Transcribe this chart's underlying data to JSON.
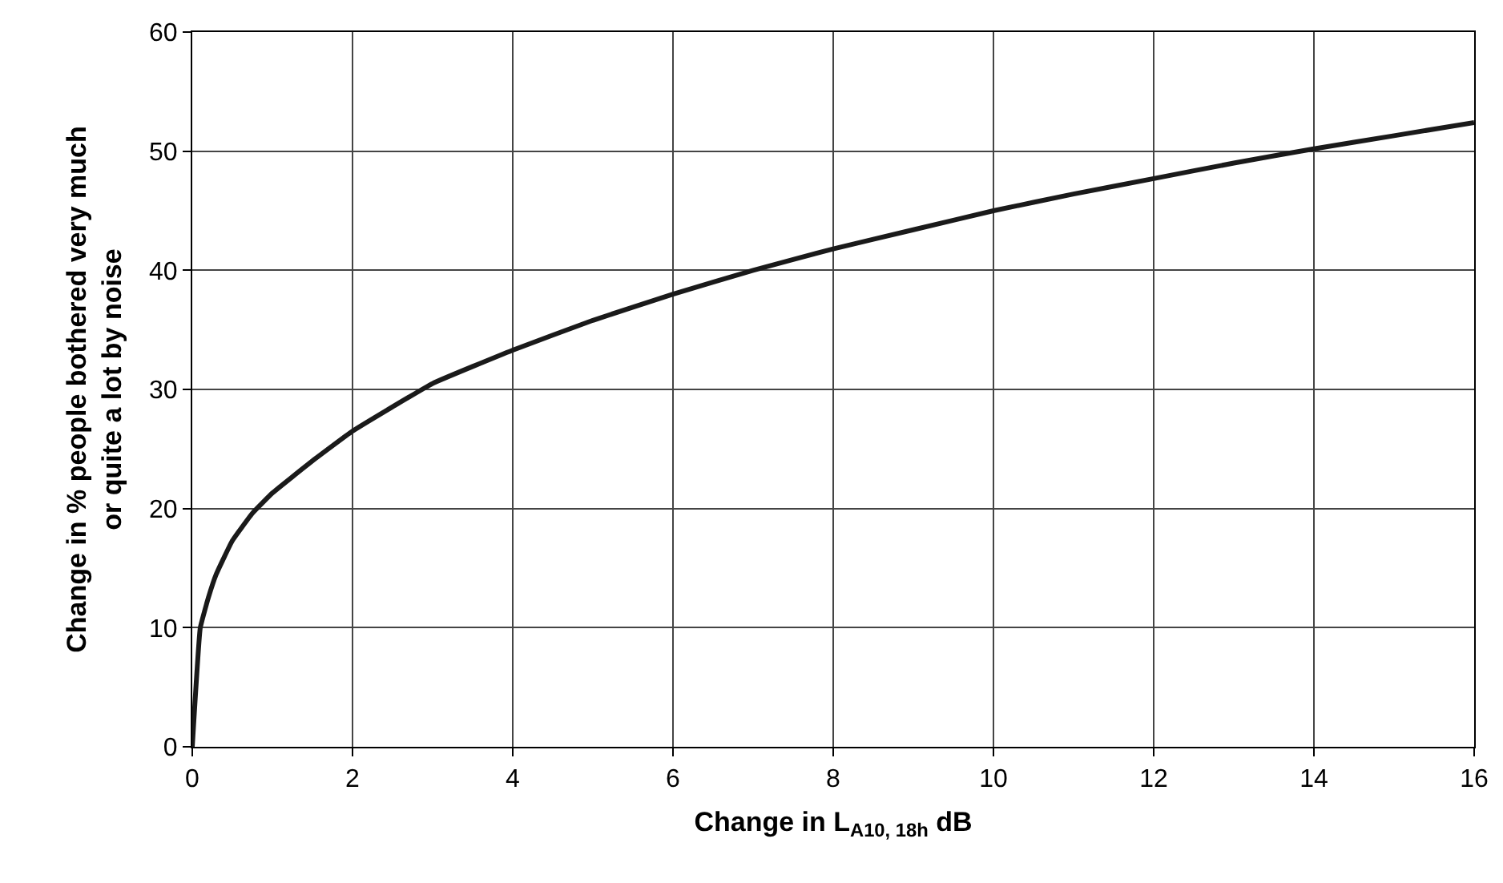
{
  "chart_data": {
    "type": "line",
    "xlabel": "Change in L$_{A10, 18h}$ dB",
    "ylabel": "Change in % people bothered very much\nor quite a lot by noise",
    "x": [
      0,
      0.1,
      0.2,
      0.3,
      0.5,
      0.75,
      1,
      1.5,
      2,
      3,
      4,
      5,
      6,
      7,
      8,
      9,
      10,
      11,
      12,
      13,
      14,
      15,
      16
    ],
    "series": [
      {
        "color": "#1a1a1a",
        "values": [
          0,
          10,
          12.5,
          14.5,
          17.3,
          19.6,
          21.3,
          24,
          26.5,
          30.5,
          33.3,
          35.8,
          38,
          40,
          41.8,
          43.4,
          45,
          46.4,
          47.7,
          49,
          50.2,
          51.3,
          52.4
        ]
      }
    ],
    "xlim": [
      0,
      16
    ],
    "xticks": [
      0,
      2,
      4,
      6,
      8,
      10,
      12,
      14,
      16
    ],
    "ylim": [
      0,
      60
    ],
    "yticks": [
      0,
      10,
      20,
      30,
      40,
      50,
      60
    ],
    "grid": true,
    "marker": "none",
    "line_style": "solid"
  }
}
